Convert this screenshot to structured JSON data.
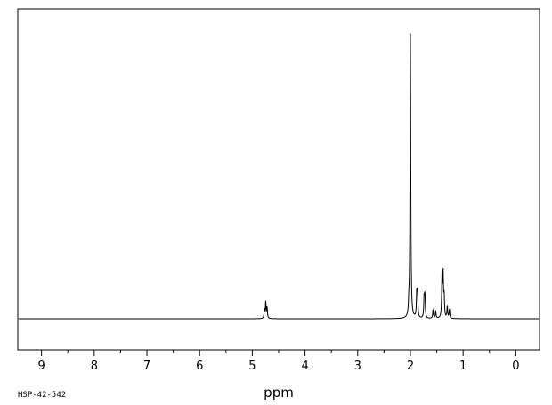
{
  "chart_data": {
    "type": "line",
    "title": "",
    "xlabel": "ppm",
    "ylabel": "",
    "xlim": [
      9.45,
      -0.45
    ],
    "x_reversed": true,
    "major_ticks": [
      9,
      8,
      7,
      6,
      5,
      4,
      3,
      2,
      1,
      0
    ],
    "tick_labels": [
      "9",
      "8",
      "7",
      "6",
      "5",
      "4",
      "3",
      "2",
      "1",
      "0"
    ],
    "minor_step": 0.5,
    "grid": false,
    "series": [
      {
        "peaks": [
          {
            "ppm": 4.77,
            "height": 0.03
          },
          {
            "ppm": 4.745,
            "height": 0.055
          },
          {
            "ppm": 4.72,
            "height": 0.036
          },
          {
            "ppm": 2.03,
            "height": 0.035
          },
          {
            "ppm": 2.0,
            "height": 0.96
          },
          {
            "ppm": 1.88,
            "height": 0.08
          },
          {
            "ppm": 1.865,
            "height": 0.085
          },
          {
            "ppm": 1.74,
            "height": 0.07
          },
          {
            "ppm": 1.725,
            "height": 0.075
          },
          {
            "ppm": 1.57,
            "height": 0.03
          },
          {
            "ppm": 1.52,
            "height": 0.025
          },
          {
            "ppm": 1.4,
            "height": 0.14
          },
          {
            "ppm": 1.38,
            "height": 0.145
          },
          {
            "ppm": 1.36,
            "height": 0.07
          },
          {
            "ppm": 1.3,
            "height": 0.04
          },
          {
            "ppm": 1.26,
            "height": 0.03
          }
        ]
      }
    ]
  },
  "footer": {
    "code": "HSP-42-542"
  }
}
